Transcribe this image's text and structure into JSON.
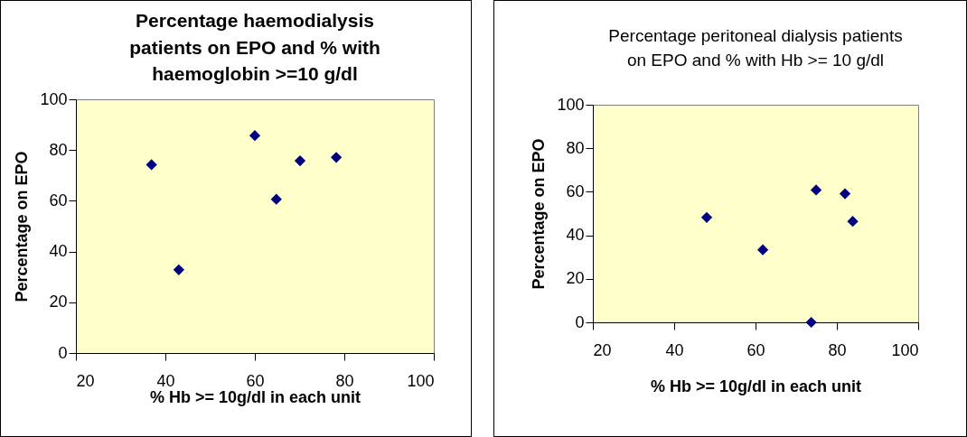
{
  "chart_data": [
    {
      "type": "scatter",
      "title": "Percentage haemodialysis patients on EPO and % with haemoglobin >=10 g/dl",
      "xlabel": "% Hb >= 10g/dl in each unit",
      "ylabel": "Percentage on EPO",
      "x": [
        36.9,
        43,
        60,
        64.8,
        70.1,
        78.2
      ],
      "series": [
        {
          "color": "#000080",
          "values": [
            74.2,
            32.8,
            85.7,
            60.6,
            75.8,
            77.1
          ]
        }
      ],
      "xlim": [
        20,
        100
      ],
      "xticks": [
        20,
        40,
        60,
        80,
        100
      ],
      "ylim": [
        0,
        100
      ],
      "yticks": [
        0,
        20,
        40,
        60,
        80,
        100
      ],
      "marker": "diamond",
      "grid": false
    },
    {
      "type": "scatter",
      "title": "Percentage peritoneal dialysis patients on EPO and % with Hb >= 10 g/dl",
      "xlabel": "% Hb >= 10g/dl in each unit",
      "ylabel": "Percentage on EPO",
      "x": [
        48,
        61.8,
        73.7,
        74.9,
        82,
        83.9
      ],
      "series": [
        {
          "color": "#000080",
          "values": [
            48.2,
            33.3,
            0,
            60.8,
            59.1,
            46.4
          ]
        }
      ],
      "xlim": [
        20,
        100
      ],
      "xticks": [
        20,
        40,
        60,
        80,
        100
      ],
      "ylim": [
        0,
        100
      ],
      "yticks": [
        0,
        20,
        40,
        60,
        80,
        100
      ],
      "marker": "diamond",
      "grid": false
    }
  ]
}
